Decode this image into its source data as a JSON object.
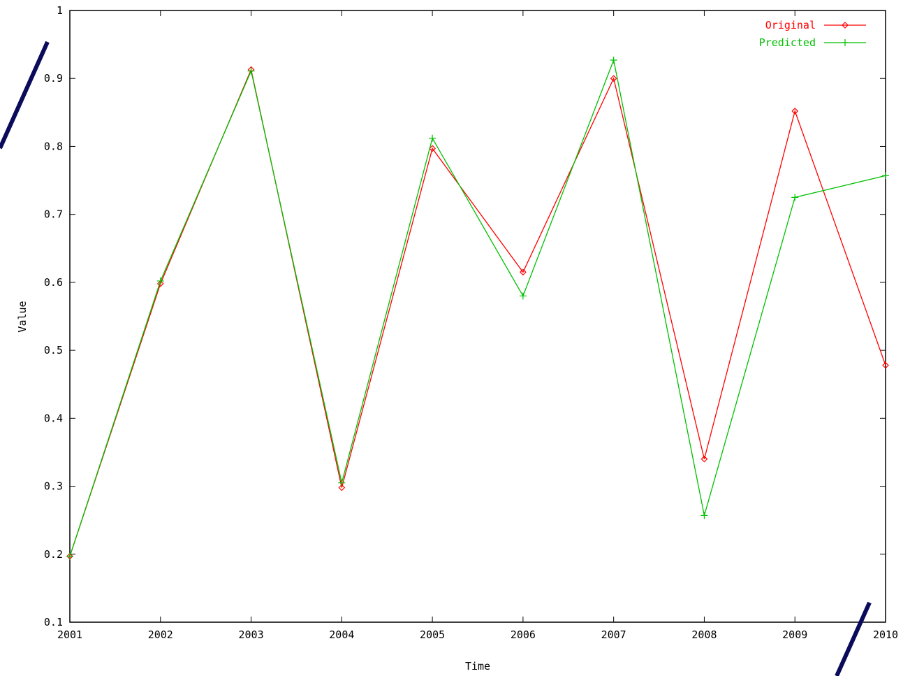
{
  "chart_data": {
    "type": "line",
    "title": "",
    "xlabel": "Time",
    "ylabel": "Value",
    "x": [
      2001,
      2002,
      2003,
      2004,
      2005,
      2006,
      2007,
      2008,
      2009,
      2010
    ],
    "xlim": [
      2001,
      2010
    ],
    "ylim": [
      0.1,
      1.0
    ],
    "x_ticks": [
      "2001",
      "2002",
      "2003",
      "2004",
      "2005",
      "2006",
      "2007",
      "2008",
      "2009",
      "2010"
    ],
    "y_ticks": [
      "0.1",
      "0.2",
      "0.3",
      "0.4",
      "0.5",
      "0.6",
      "0.7",
      "0.8",
      "0.9",
      "1"
    ],
    "grid": false,
    "legend_position": "top-right",
    "series": [
      {
        "name": "Original",
        "color": "#ff0000",
        "marker": "diamond",
        "values": [
          0.197,
          0.598,
          0.913,
          0.298,
          0.797,
          0.615,
          0.9,
          0.34,
          0.852,
          0.478
        ]
      },
      {
        "name": "Predicted",
        "color": "#00c000",
        "marker": "plus",
        "values": [
          0.197,
          0.602,
          0.911,
          0.305,
          0.812,
          0.58,
          0.927,
          0.257,
          0.725,
          0.757
        ]
      }
    ]
  },
  "decorations": {
    "stroke_color": "#0b0b5c"
  }
}
